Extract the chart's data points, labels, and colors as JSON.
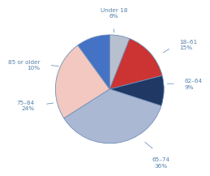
{
  "labels": [
    "Under 18",
    "18–61",
    "62–64",
    "65–74",
    "75–84",
    "85 or older"
  ],
  "values": [
    6,
    15,
    9,
    36,
    24,
    10
  ],
  "colors": [
    "#b8bfcf",
    "#cc3333",
    "#1f3864",
    "#aab8d4",
    "#f2c8c0",
    "#4472c4"
  ],
  "label_texts": [
    "Under 18\n6%",
    "18–61\n15%",
    "62–64\n9%",
    "65–74\n36%",
    "75–84\n24%",
    "85 or older\n10%"
  ],
  "startangle": 90,
  "background_color": "#ffffff",
  "edge_color": "#7090b8",
  "edge_linewidth": 0.6,
  "label_color": "#5580aa",
  "fontsize": 5.2
}
